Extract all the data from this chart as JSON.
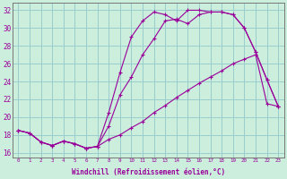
{
  "xlabel": "Windchill (Refroidissement éolien,°C)",
  "bg_color": "#cceedd",
  "grid_color": "#99cccc",
  "line_color": "#990099",
  "xlim": [
    -0.5,
    23.5
  ],
  "ylim": [
    15.5,
    32.8
  ],
  "yticks": [
    16,
    18,
    20,
    22,
    24,
    26,
    28,
    30,
    32
  ],
  "xticks": [
    0,
    1,
    2,
    3,
    4,
    5,
    6,
    7,
    8,
    9,
    10,
    11,
    12,
    13,
    14,
    15,
    16,
    17,
    18,
    19,
    20,
    21,
    22,
    23
  ],
  "line1_x": [
    0,
    1,
    2,
    3,
    4,
    5,
    6,
    7,
    8,
    9,
    10,
    11,
    12,
    13,
    14,
    15,
    16,
    17,
    18,
    19,
    20,
    21,
    22,
    23
  ],
  "line1_y": [
    18.5,
    18.2,
    17.2,
    16.8,
    17.3,
    17.0,
    16.5,
    16.7,
    17.5,
    18.0,
    18.8,
    19.5,
    20.5,
    21.3,
    22.2,
    23.0,
    23.8,
    24.5,
    25.2,
    26.0,
    26.5,
    27.0,
    21.5,
    21.2
  ],
  "line2_x": [
    0,
    1,
    2,
    3,
    4,
    5,
    6,
    7,
    8,
    9,
    10,
    11,
    12,
    13,
    14,
    15,
    16,
    17,
    18,
    19,
    20,
    21,
    22,
    23
  ],
  "line2_y": [
    18.5,
    18.2,
    17.2,
    16.8,
    17.3,
    17.0,
    16.5,
    16.7,
    19.0,
    22.5,
    24.5,
    27.0,
    28.8,
    30.8,
    31.0,
    30.5,
    31.5,
    31.8,
    31.8,
    31.5,
    30.0,
    27.3,
    24.2,
    21.2
  ],
  "line3_x": [
    0,
    1,
    2,
    3,
    4,
    5,
    6,
    7,
    8,
    9,
    10,
    11,
    12,
    13,
    14,
    15,
    16,
    17,
    18,
    19,
    20,
    21,
    22,
    23
  ],
  "line3_y": [
    18.5,
    18.2,
    17.2,
    16.8,
    17.3,
    17.0,
    16.5,
    16.7,
    20.5,
    25.0,
    29.0,
    30.8,
    31.8,
    31.5,
    30.8,
    32.0,
    32.0,
    31.8,
    31.8,
    31.5,
    30.0,
    27.3,
    24.2,
    21.2
  ]
}
